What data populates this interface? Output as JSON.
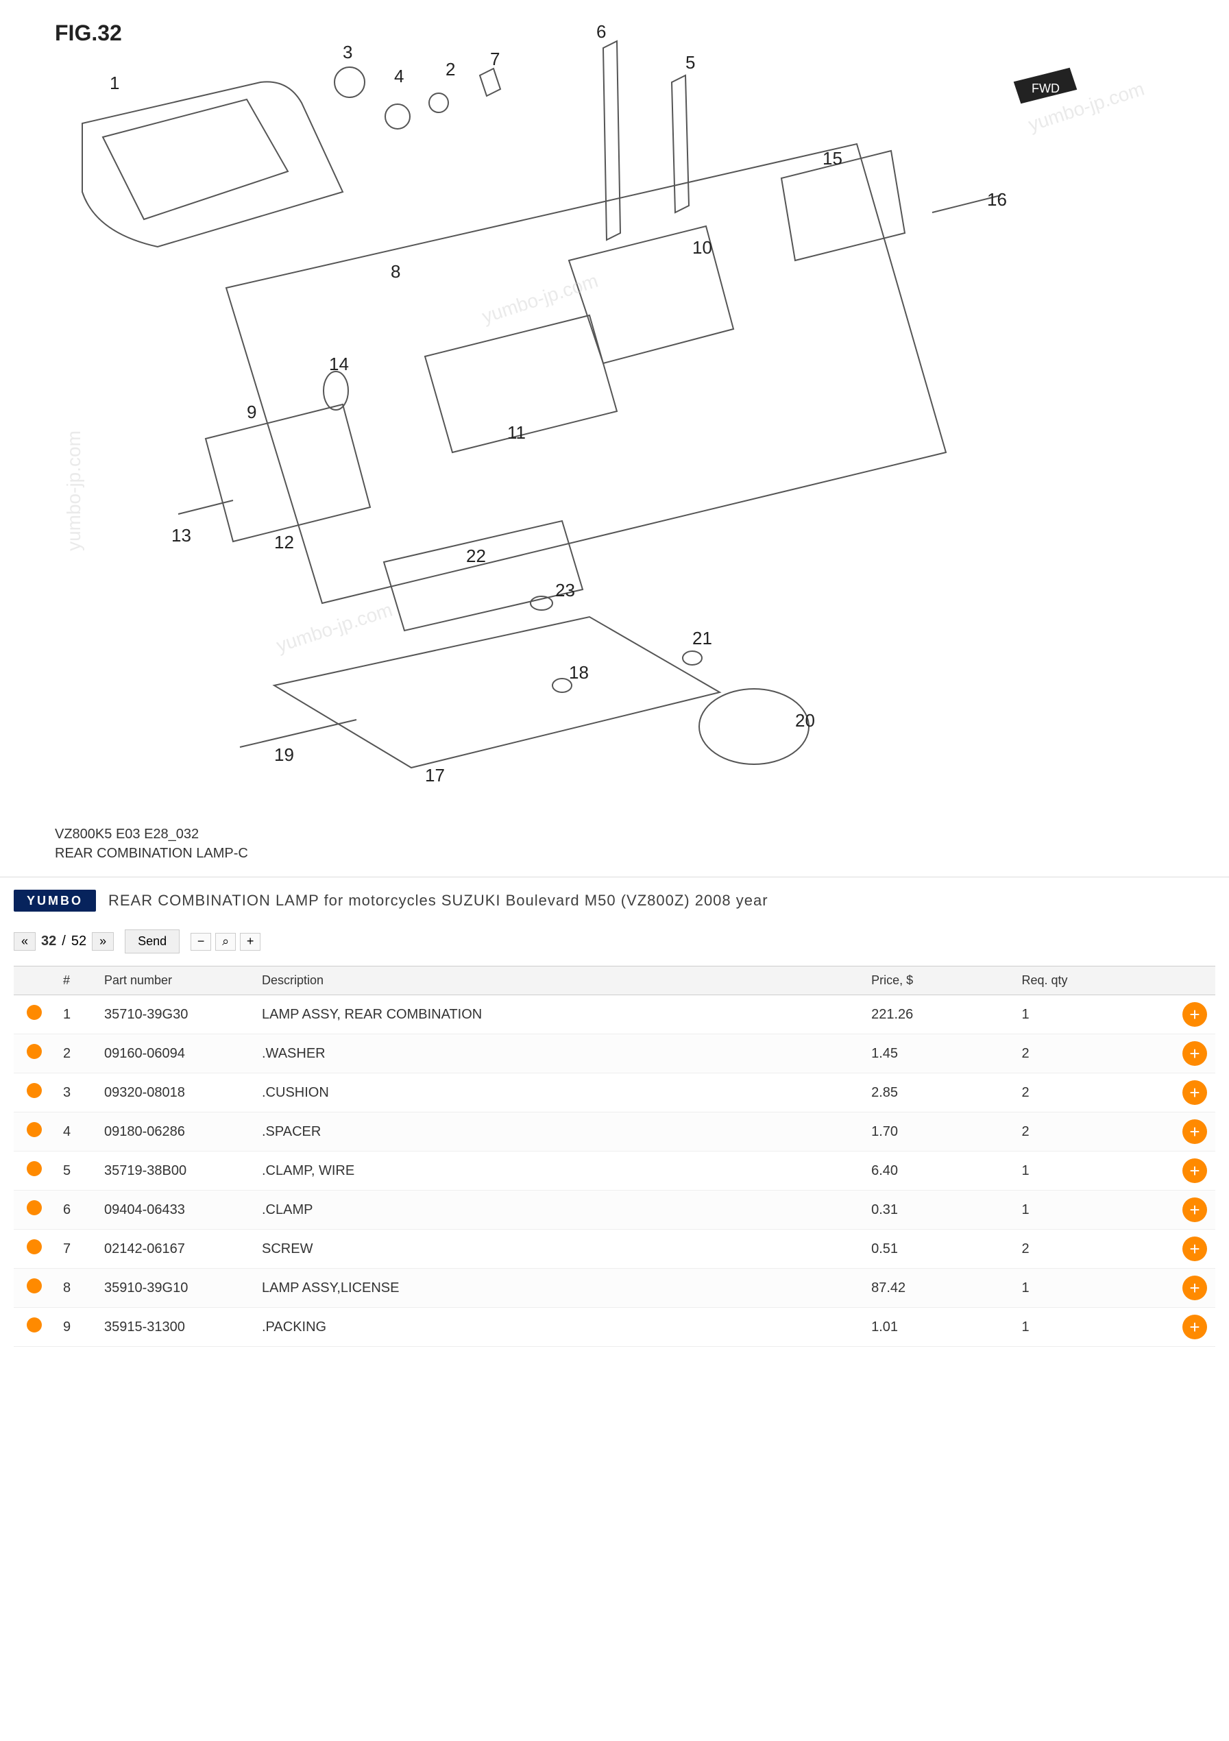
{
  "figure": {
    "label": "FIG.32",
    "model_line": "VZ800K5 E03 E28_032",
    "name": "REAR COMBINATION LAMP-C",
    "watermark": "yumbo-jp.com",
    "callouts": [
      "1",
      "2",
      "3",
      "4",
      "5",
      "6",
      "7",
      "8",
      "9",
      "10",
      "11",
      "12",
      "13",
      "14",
      "15",
      "16",
      "17",
      "18",
      "19",
      "20",
      "21",
      "22",
      "23"
    ],
    "fwd_badge": "FWD"
  },
  "header": {
    "logo_text": "YUMBO",
    "breadcrumb": "REAR COMBINATION LAMP for motorcycles SUZUKI Boulevard M50 (VZ800Z) 2008 year"
  },
  "toolbar": {
    "prev": "«",
    "next": "»",
    "current_page": "32",
    "total_pages": "52",
    "send_label": "Send",
    "zoom_in": "+",
    "zoom_out": "−",
    "zoom_icon": "⌕"
  },
  "table": {
    "columns": [
      "",
      "#",
      "Part number",
      "Description",
      "Price, $",
      "Req. qty",
      ""
    ],
    "rows": [
      {
        "ref": "1",
        "pn": "35710-39G30",
        "desc": "LAMP ASSY, REAR COMBINATION",
        "price": "221.26",
        "qty": "1"
      },
      {
        "ref": "2",
        "pn": "09160-06094",
        "desc": ".WASHER",
        "price": "1.45",
        "qty": "2"
      },
      {
        "ref": "3",
        "pn": "09320-08018",
        "desc": ".CUSHION",
        "price": "2.85",
        "qty": "2"
      },
      {
        "ref": "4",
        "pn": "09180-06286",
        "desc": ".SPACER",
        "price": "1.70",
        "qty": "2"
      },
      {
        "ref": "5",
        "pn": "35719-38B00",
        "desc": ".CLAMP, WIRE",
        "price": "6.40",
        "qty": "1"
      },
      {
        "ref": "6",
        "pn": "09404-06433",
        "desc": ".CLAMP",
        "price": "0.31",
        "qty": "1"
      },
      {
        "ref": "7",
        "pn": "02142-06167",
        "desc": "SCREW",
        "price": "0.51",
        "qty": "2"
      },
      {
        "ref": "8",
        "pn": "35910-39G10",
        "desc": "LAMP ASSY,LICENSE",
        "price": "87.42",
        "qty": "1"
      },
      {
        "ref": "9",
        "pn": "35915-31300",
        "desc": ".PACKING",
        "price": "1.01",
        "qty": "1"
      }
    ]
  },
  "colors": {
    "accent": "#ff8a00",
    "logo_bg": "#07235c",
    "text": "#333333",
    "border": "#dddddd"
  }
}
